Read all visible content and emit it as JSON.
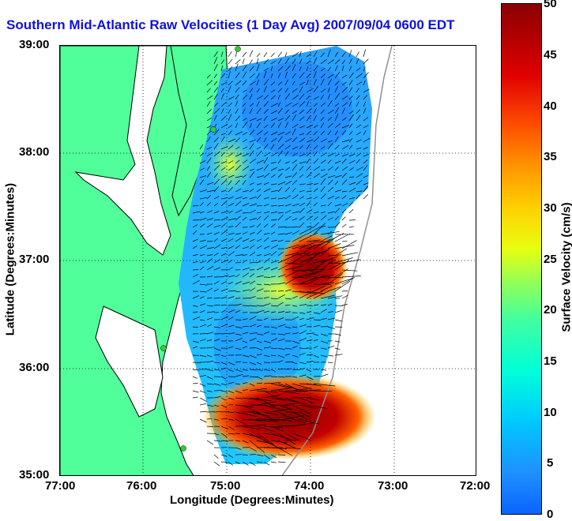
{
  "title": "Southern Mid-Atlantic Raw Velocities (1 Day Avg) 2007/09/04 0600 EDT",
  "xlabel": "Longitude (Degrees:Minutes)",
  "ylabel": "Latitude (Degrees:Minutes)",
  "x_ticks": [
    "77:00",
    "76:00",
    "75:00",
    "74:00",
    "73:00",
    "72:00"
  ],
  "y_ticks": [
    "39:00",
    "38:00",
    "37:00",
    "36:00",
    "35:00"
  ],
  "colorbar": {
    "label": "Surface Velocity (cm/s)",
    "ticks": [
      "50",
      "45",
      "40",
      "35",
      "30",
      "25",
      "20",
      "15",
      "10",
      "5",
      "0"
    ],
    "range": [
      0,
      50
    ]
  },
  "colors": {
    "land": "#50ff9a",
    "title": "#1010e0",
    "shelf": "#909090"
  },
  "map_extent": {
    "lon": [
      -77,
      -72
    ],
    "lat": [
      35,
      39
    ]
  }
}
